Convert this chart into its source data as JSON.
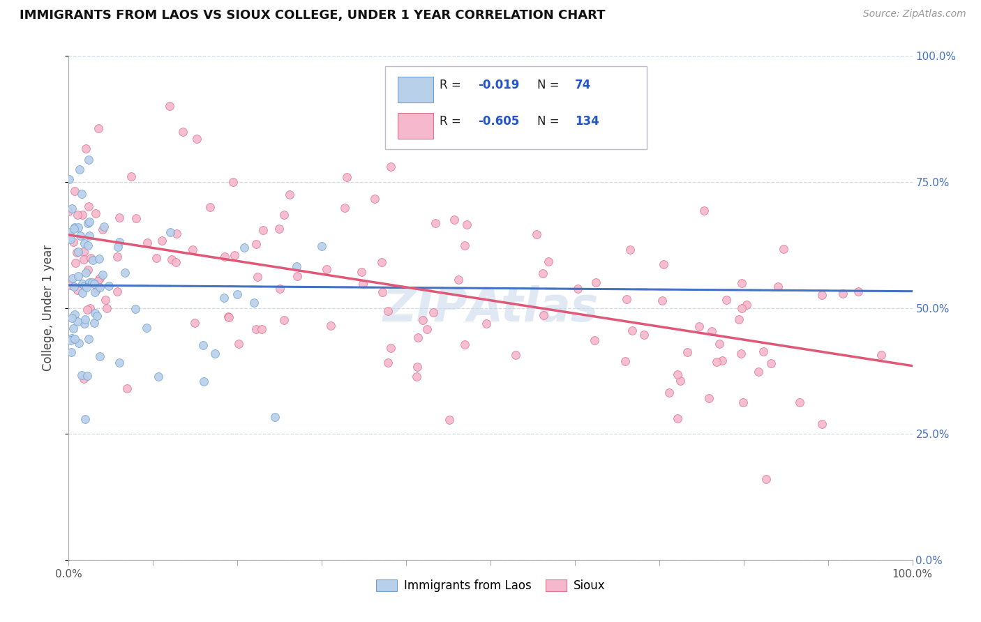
{
  "title": "IMMIGRANTS FROM LAOS VS SIOUX COLLEGE, UNDER 1 YEAR CORRELATION CHART",
  "source": "Source: ZipAtlas.com",
  "ylabel": "College, Under 1 year",
  "yticks_labels": [
    "0.0%",
    "25.0%",
    "50.0%",
    "75.0%",
    "100.0%"
  ],
  "ytick_vals": [
    0.0,
    0.25,
    0.5,
    0.75,
    1.0
  ],
  "blue_scatter_color": "#b8d0ea",
  "blue_scatter_edge": "#6fa0d0",
  "pink_scatter_color": "#f5b8cc",
  "pink_scatter_edge": "#e07090",
  "blue_line_color": "#4472c4",
  "pink_line_color": "#e05878",
  "right_axis_color": "#4472c4",
  "grid_color": "#d0d8e8",
  "watermark_color": "#c8d8ea",
  "legend_r_blue": "-0.019",
  "legend_n_blue": "74",
  "legend_r_pink": "-0.605",
  "legend_n_pink": "134",
  "blue_trend_intercept": 0.545,
  "blue_trend_slope": -0.012,
  "pink_trend_intercept": 0.645,
  "pink_trend_slope": -0.26
}
